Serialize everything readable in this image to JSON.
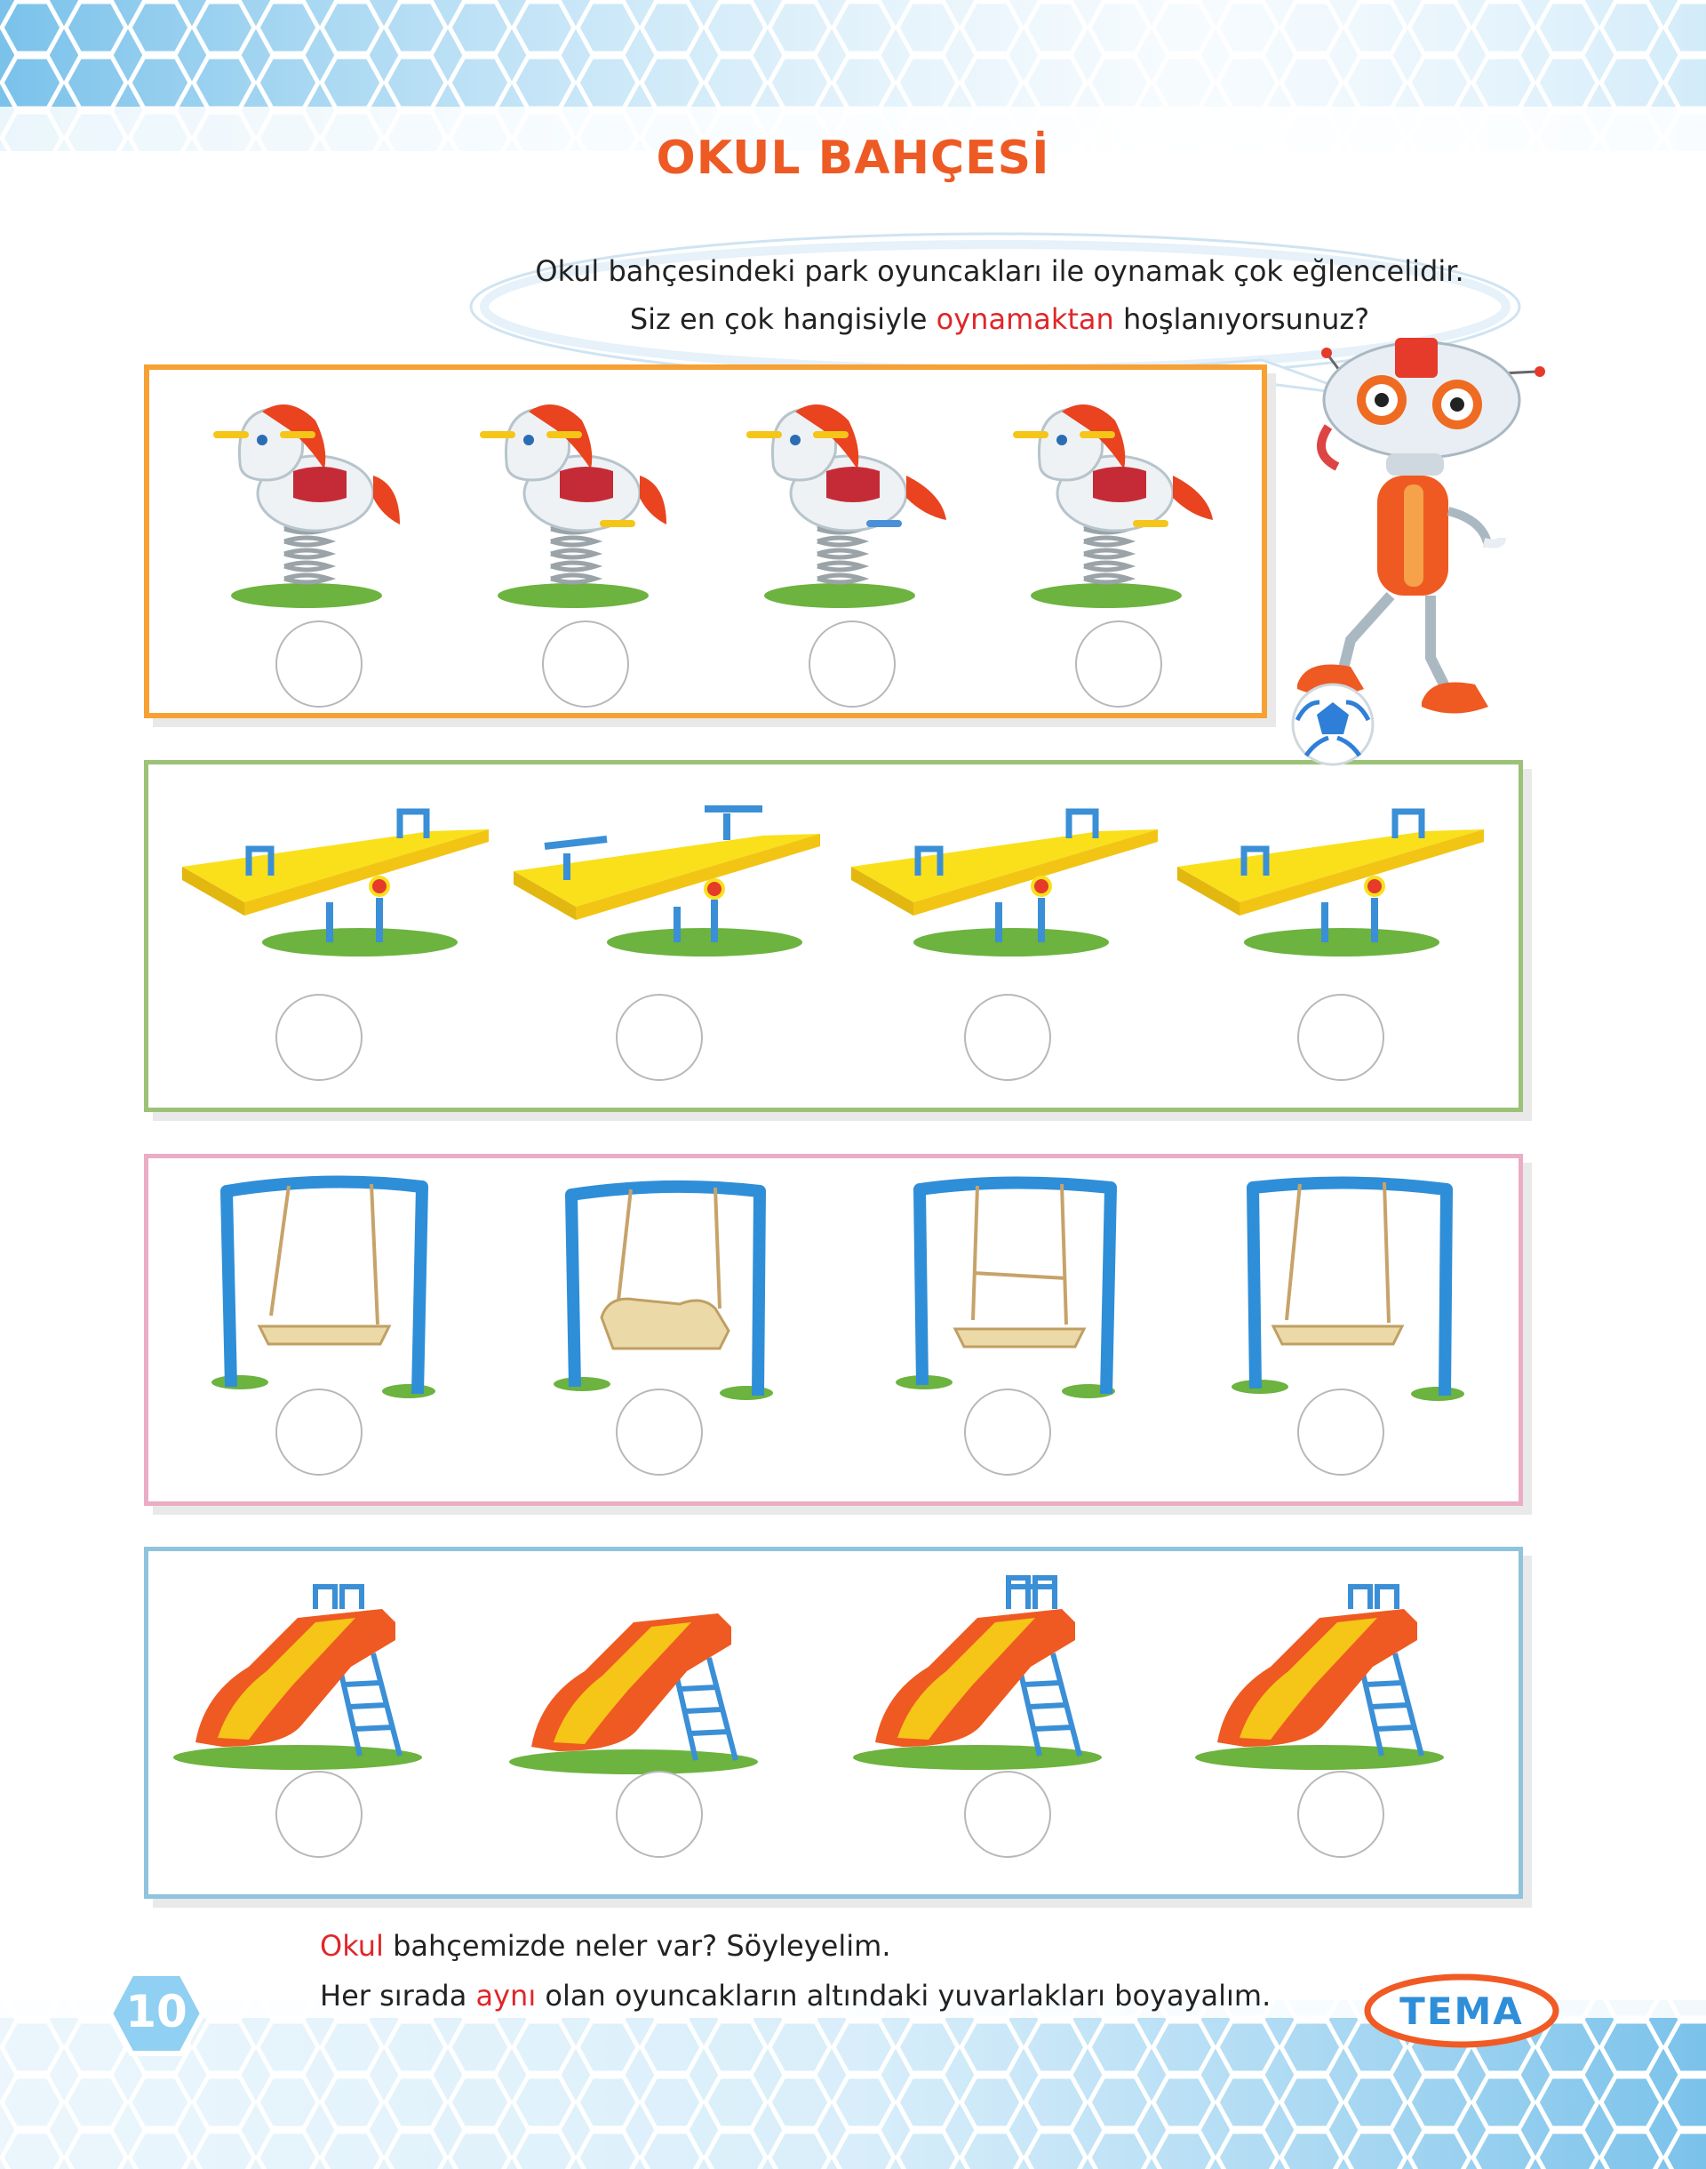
{
  "title": "OKUL BAHÇESİ",
  "bubble": {
    "line1": "Okul bahçesindeki park oyuncakları ile oynamak çok eğlencelidir.",
    "line2_before": "Siz en çok hangisiyle ",
    "line2_highlight": "oynamaktan",
    "line2_after": " hoşlanıyorsunuz?"
  },
  "rows": [
    {
      "toy": "rocking-horse",
      "count": 4
    },
    {
      "toy": "seesaw",
      "count": 4
    },
    {
      "toy": "swing",
      "count": 4
    },
    {
      "toy": "slide",
      "count": 4
    }
  ],
  "instructions": {
    "line1_highlight": "Okul",
    "line1_after": " bahçemizde neler var? Söyleyelim.",
    "line2_before": "Her sırada ",
    "line2_highlight": "aynı",
    "line2_after": " olan oyuncakların altındaki yuvarlakları boyayalım."
  },
  "page_number": "10",
  "footer_label": "TEMA",
  "colors": {
    "title": "#ee5a24",
    "highlight": "#e0262a",
    "row1_border": "#f7a034",
    "row2_border": "#9bc277",
    "row3_border": "#ebacc5",
    "row4_border": "#8fc3de"
  }
}
